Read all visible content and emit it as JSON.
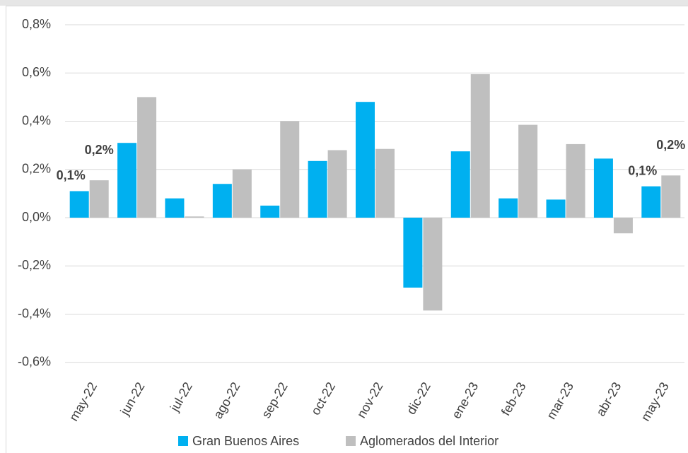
{
  "chart_data": {
    "type": "bar",
    "categories": [
      "may-22",
      "jun-22",
      "jul-22",
      "ago-22",
      "sep-22",
      "oct-22",
      "nov-22",
      "dic-22",
      "ene-23",
      "feb-23",
      "mar-23",
      "abr-23",
      "may-23"
    ],
    "series": [
      {
        "name": "Gran Buenos Aires",
        "color": "#00b0f0",
        "values": [
          0.11,
          0.31,
          0.08,
          0.14,
          0.05,
          0.235,
          0.48,
          -0.29,
          0.275,
          0.08,
          0.075,
          0.245,
          0.13
        ],
        "value_labels": [
          "0,1%",
          null,
          null,
          null,
          null,
          null,
          null,
          null,
          null,
          null,
          null,
          null,
          "0,1%"
        ]
      },
      {
        "name": "Aglomerados del Interior",
        "color": "#bfbfbf",
        "values": [
          0.155,
          0.5,
          0.005,
          0.2,
          0.4,
          0.28,
          0.285,
          -0.385,
          0.595,
          0.385,
          0.305,
          -0.065,
          0.175
        ],
        "value_labels": [
          "0,2%",
          null,
          null,
          null,
          null,
          null,
          null,
          null,
          null,
          null,
          null,
          null,
          "0,2%"
        ]
      }
    ],
    "ylim": [
      -0.6,
      0.8
    ],
    "yticks": [
      {
        "value": -0.6,
        "label": "-0,6%"
      },
      {
        "value": -0.4,
        "label": "-0,4%"
      },
      {
        "value": -0.2,
        "label": "-0,2%"
      },
      {
        "value": 0,
        "label": "0,0%"
      },
      {
        "value": 0.2,
        "label": "0,2%"
      },
      {
        "value": 0.4,
        "label": "0,4%"
      },
      {
        "value": 0.6,
        "label": "0,6%"
      },
      {
        "value": 0.8,
        "label": "0,8%"
      }
    ],
    "grid": true,
    "legend": "bottom"
  }
}
